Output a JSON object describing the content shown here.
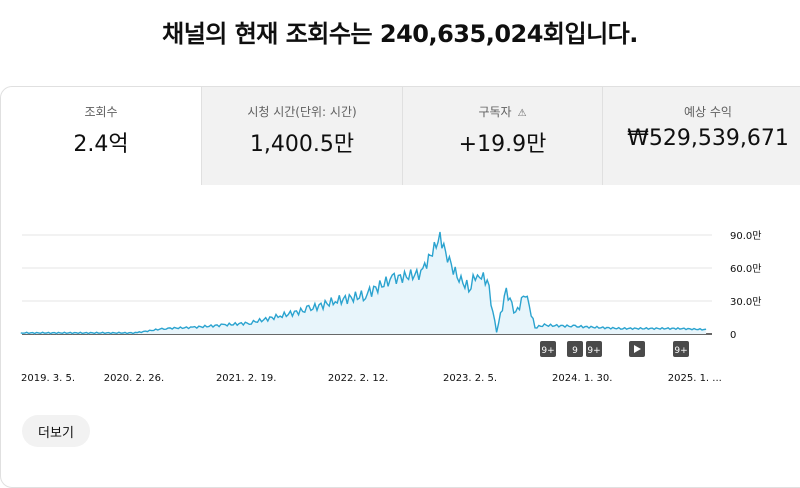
{
  "headline": "채널의 현재 조회수는 240,635,024회입니다.",
  "tabs": [
    {
      "label": "조회수",
      "value": "2.4억"
    },
    {
      "label": "시청 시간(단위: 시간)",
      "value": "1,400.5만"
    },
    {
      "label": "구독자",
      "value": "+19.9만",
      "icon": "warning-icon"
    },
    {
      "label": "예상 수익",
      "value": "₩529,539,671"
    }
  ],
  "more_button": "더보기",
  "markers": [
    "9+",
    "9",
    "9+",
    "play-icon",
    "9+"
  ],
  "chart_data": {
    "type": "area",
    "title": "",
    "xlabel": "",
    "ylabel": "",
    "y_ticks": [
      "90.0만",
      "60.0만",
      "30.0만",
      "0"
    ],
    "x_ticks": [
      "2019. 3. 5.",
      "2020. 2. 26.",
      "2021. 2. 19.",
      "2022. 2. 12.",
      "2023. 2. 5.",
      "2024. 1. 30.",
      "2025. 1. ..."
    ],
    "ylim": [
      0,
      900000
    ],
    "grid": true,
    "color": "#2ba3cf",
    "fill_color": "#e8f5fb",
    "series": [
      {
        "x": [
          "2019-03",
          "2019-09",
          "2020-03",
          "2020-06",
          "2020-09",
          "2020-12",
          "2021-03",
          "2021-06",
          "2021-09",
          "2021-12",
          "2022-03",
          "2022-06",
          "2022-09",
          "2022-11",
          "2022-12",
          "2023-01",
          "2023-02",
          "2023-03",
          "2023-04",
          "2023-05",
          "2023-06",
          "2023-07",
          "2023-08",
          "2023-09",
          "2023-10",
          "2024-01",
          "2024-06",
          "2024-12",
          "2025-03"
        ],
        "y": [
          10000,
          10000,
          10000,
          50000,
          60000,
          80000,
          100000,
          160000,
          220000,
          300000,
          350000,
          500000,
          550000,
          880000,
          650000,
          500000,
          420000,
          550000,
          480000,
          20000,
          400000,
          180000,
          380000,
          60000,
          80000,
          70000,
          50000,
          50000,
          40000
        ]
      }
    ]
  }
}
